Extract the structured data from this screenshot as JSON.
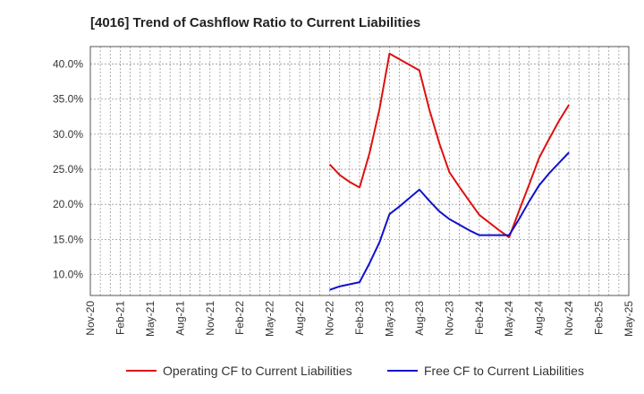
{
  "chart_data": {
    "type": "line",
    "title": "[4016]  Trend of Cashflow Ratio to Current Liabilities",
    "xlabel": "",
    "ylabel": "",
    "x_ticks": [
      "Nov-20",
      "Feb-21",
      "May-21",
      "Aug-21",
      "Nov-21",
      "Feb-22",
      "May-22",
      "Aug-22",
      "Nov-22",
      "Feb-23",
      "May-23",
      "Aug-23",
      "Nov-23",
      "Feb-24",
      "May-24",
      "Aug-24",
      "Nov-24",
      "Feb-25",
      "May-25"
    ],
    "y_ticks": [
      "10.0%",
      "15.0%",
      "20.0%",
      "25.0%",
      "30.0%",
      "35.0%",
      "40.0%"
    ],
    "ylim": [
      7.0,
      42.5
    ],
    "y_unit": "%",
    "grid": true,
    "legend_position": "bottom",
    "series": [
      {
        "name": "Operating CF to Current Liabilities",
        "color": "#dd1111",
        "points": [
          {
            "x": "Nov-22",
            "y": 25.7
          },
          {
            "x": "Dec-22",
            "y": 24.2
          },
          {
            "x": "Jan-23",
            "y": 23.2
          },
          {
            "x": "Feb-23",
            "y": 22.4
          },
          {
            "x": "Mar-23",
            "y": 27.3
          },
          {
            "x": "Apr-23",
            "y": 33.6
          },
          {
            "x": "May-23",
            "y": 41.5
          },
          {
            "x": "Jun-23",
            "y": 40.7
          },
          {
            "x": "Jul-23",
            "y": 39.9
          },
          {
            "x": "Aug-23",
            "y": 39.1
          },
          {
            "x": "Sep-23",
            "y": 33.5
          },
          {
            "x": "Oct-23",
            "y": 28.7
          },
          {
            "x": "Nov-23",
            "y": 24.6
          },
          {
            "x": "Dec-23",
            "y": 22.5
          },
          {
            "x": "Jan-24",
            "y": 20.5
          },
          {
            "x": "Feb-24",
            "y": 18.5
          },
          {
            "x": "Mar-24",
            "y": 17.4
          },
          {
            "x": "Apr-24",
            "y": 16.3
          },
          {
            "x": "May-24",
            "y": 15.3
          },
          {
            "x": "Jun-24",
            "y": 19.1
          },
          {
            "x": "Jul-24",
            "y": 22.8
          },
          {
            "x": "Aug-24",
            "y": 26.6
          },
          {
            "x": "Sep-24",
            "y": 29.3
          },
          {
            "x": "Oct-24",
            "y": 31.9
          },
          {
            "x": "Nov-24",
            "y": 34.2
          }
        ]
      },
      {
        "name": "Free CF to Current Liabilities",
        "color": "#1111cc",
        "points": [
          {
            "x": "Nov-22",
            "y": 7.8
          },
          {
            "x": "Dec-22",
            "y": 8.3
          },
          {
            "x": "Jan-23",
            "y": 8.6
          },
          {
            "x": "Feb-23",
            "y": 8.9
          },
          {
            "x": "Mar-23",
            "y": 11.6
          },
          {
            "x": "Apr-23",
            "y": 14.6
          },
          {
            "x": "May-23",
            "y": 18.6
          },
          {
            "x": "Jun-23",
            "y": 19.7
          },
          {
            "x": "Jul-23",
            "y": 20.9
          },
          {
            "x": "Aug-23",
            "y": 22.1
          },
          {
            "x": "Sep-23",
            "y": 20.5
          },
          {
            "x": "Oct-23",
            "y": 19.0
          },
          {
            "x": "Nov-23",
            "y": 17.9
          },
          {
            "x": "Dec-23",
            "y": 17.1
          },
          {
            "x": "Jan-24",
            "y": 16.3
          },
          {
            "x": "Feb-24",
            "y": 15.6
          },
          {
            "x": "Mar-24",
            "y": 15.6
          },
          {
            "x": "Apr-24",
            "y": 15.6
          },
          {
            "x": "May-24",
            "y": 15.6
          },
          {
            "x": "Jun-24",
            "y": 17.9
          },
          {
            "x": "Jul-24",
            "y": 20.4
          },
          {
            "x": "Aug-24",
            "y": 22.7
          },
          {
            "x": "Sep-24",
            "y": 24.4
          },
          {
            "x": "Oct-24",
            "y": 25.9
          },
          {
            "x": "Nov-24",
            "y": 27.4
          }
        ]
      }
    ]
  }
}
